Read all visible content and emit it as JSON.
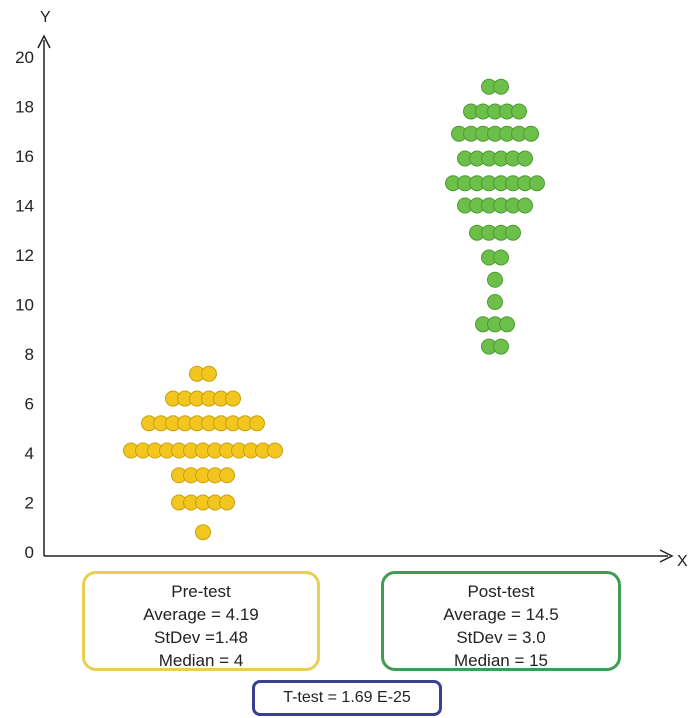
{
  "chart_data": {
    "type": "scatter",
    "title": "",
    "xlabel": "X",
    "ylabel": "Y",
    "ylim": [
      0,
      20
    ],
    "yticks": [
      0,
      2,
      4,
      6,
      8,
      10,
      12,
      14,
      16,
      18,
      20
    ],
    "grid": false,
    "legend": "none",
    "series": [
      {
        "name": "Pre-test",
        "color": "#f2c61f",
        "points": [
          {
            "y": 0.8,
            "count": 1
          },
          {
            "y": 2.0,
            "count": 5
          },
          {
            "y": 3.1,
            "count": 5
          },
          {
            "y": 4.1,
            "count": 13
          },
          {
            "y": 5.2,
            "count": 10
          },
          {
            "y": 6.2,
            "count": 6
          },
          {
            "y": 7.2,
            "count": 2
          }
        ]
      },
      {
        "name": "Post-test",
        "color": "#6cc04a",
        "points": [
          {
            "y": 8.3,
            "count": 2
          },
          {
            "y": 9.2,
            "count": 3
          },
          {
            "y": 10.1,
            "count": 1
          },
          {
            "y": 11.0,
            "count": 1
          },
          {
            "y": 11.9,
            "count": 2
          },
          {
            "y": 12.9,
            "count": 4
          },
          {
            "y": 14.0,
            "count": 6
          },
          {
            "y": 14.9,
            "count": 8
          },
          {
            "y": 15.9,
            "count": 6
          },
          {
            "y": 16.9,
            "count": 7
          },
          {
            "y": 17.8,
            "count": 5
          },
          {
            "y": 18.8,
            "count": 2
          }
        ]
      }
    ]
  },
  "stats": {
    "pre": {
      "name": "Pre-test",
      "average": "Average = 4.19",
      "stdev": "StDev =1.48",
      "median": "Median = 4"
    },
    "post": {
      "name": "Post-test",
      "average": "Average = 14.5",
      "stdev": "StDev = 3.0",
      "median": "Median = 15"
    },
    "ttest": "T-test = 1.69 E-25"
  }
}
